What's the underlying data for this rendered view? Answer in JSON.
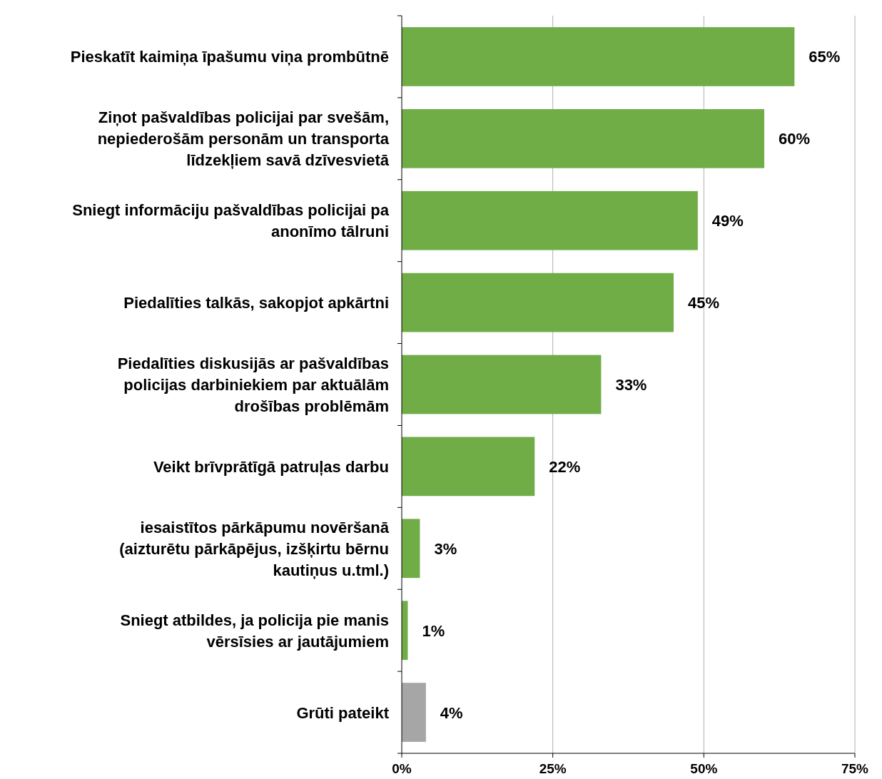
{
  "chart_data": {
    "type": "bar",
    "orientation": "horizontal",
    "categories": [
      "Pieskatīt kaimiņa īpašumu viņa prombūtnē",
      "Ziņot pašvaldības policijai par svešām,\nnepiederošām personām un transporta\nlīdzekļiem savā dzīvesvietā",
      "Sniegt informāciju pašvaldības policijai pa\nanonīmo tālruni",
      "Piedalīties talkās, sakopjot apkārtni",
      "Piedalīties diskusijās ar pašvaldības\npolicijas darbiniekiem par aktuālām\ndrošības problēmām",
      "Veikt brīvprātīgā patruļas darbu",
      "iesaistītos pārkāpumu novēršanā\n(aizturētu pārkāpējus, izšķirtu bērnu\nkautiņus u.tml.)",
      "Sniegt atbildes, ja policija pie manis\nvērsīsies ar jautājumiem",
      "Grūti pateikt"
    ],
    "values": [
      65,
      60,
      49,
      45,
      33,
      22,
      3,
      1,
      4
    ],
    "value_labels": [
      "65%",
      "60%",
      "49%",
      "45%",
      "33%",
      "22%",
      "3%",
      "1%",
      "4%"
    ],
    "colors": [
      "#70ad47",
      "#70ad47",
      "#70ad47",
      "#70ad47",
      "#70ad47",
      "#70ad47",
      "#70ad47",
      "#70ad47",
      "#a6a6a6"
    ],
    "xlim": [
      0,
      75
    ],
    "xticks": [
      {
        "value": 0,
        "label": "0%"
      },
      {
        "value": 25,
        "label": "25%"
      },
      {
        "value": 50,
        "label": "50%"
      },
      {
        "value": 75,
        "label": "75%"
      }
    ],
    "grid": "x"
  }
}
